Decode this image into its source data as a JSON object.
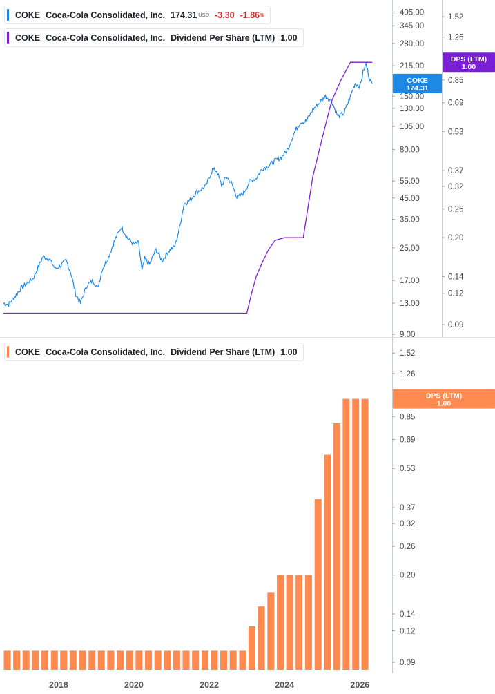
{
  "panels": {
    "top_legend_price": {
      "ticker": "COKE",
      "name": "Coca-Cola Consolidated, Inc.",
      "price": "174.31",
      "currency": "USD",
      "change": "-3.30",
      "change_pct": "-1.86",
      "pct_sign": "%"
    },
    "top_legend_dps": {
      "ticker": "COKE",
      "name": "Coca-Cola Consolidated, Inc.",
      "metric": "Dividend Per Share (LTM)",
      "value": "1.00"
    },
    "bottom_legend_dps": {
      "ticker": "COKE",
      "name": "Coca-Cola Consolidated, Inc.",
      "metric": "Dividend Per Share (LTM)",
      "value": "1.00"
    }
  },
  "colors": {
    "price_line": "#1e88e5",
    "dps_line": "#7b1fd6",
    "dps_bar": "#ff8a50",
    "axis_text": "#444444",
    "neg": "#d32f2f"
  },
  "chart_data": [
    {
      "type": "line",
      "title": "",
      "scale": "log",
      "price_axis_ticks": [
        "405.00",
        "345.00",
        "280.00",
        "215.00",
        "150.00",
        "130.00",
        "105.00",
        "80.00",
        "55.00",
        "45.00",
        "35.00",
        "25.00",
        "17.00",
        "13.00",
        "9.00"
      ],
      "dps_axis_ticks": [
        "1.52",
        "1.26",
        "0.85",
        "0.69",
        "0.53",
        "0.37",
        "0.32",
        "0.26",
        "0.20",
        "0.14",
        "0.12",
        "0.09"
      ],
      "price_ylim": [
        9,
        460
      ],
      "dps_ylim": [
        0.084,
        1.76
      ],
      "xlim": [
        "2016-07-15",
        "2026-08-01"
      ],
      "labels": {
        "price": {
          "name": "COKE",
          "value": "174.31"
        },
        "dps": {
          "name": "DPS (LTM)",
          "value": "1.00"
        }
      },
      "series": [
        {
          "name": "COKE",
          "x": [
            "2016-07-15",
            "2016-09-01",
            "2016-11-01",
            "2017-01-01",
            "2017-03-01",
            "2017-05-01",
            "2017-06-15",
            "2017-08-01",
            "2017-10-01",
            "2017-12-01",
            "2018-02-01",
            "2018-03-15",
            "2018-05-01",
            "2018-06-15",
            "2018-08-01",
            "2018-10-01",
            "2018-12-01",
            "2019-01-15",
            "2019-03-01",
            "2019-05-01",
            "2019-07-01",
            "2019-09-01",
            "2019-11-01",
            "2020-01-01",
            "2020-02-15",
            "2020-03-20",
            "2020-04-15",
            "2020-06-01",
            "2020-08-01",
            "2020-10-01",
            "2020-12-01",
            "2021-02-01",
            "2021-03-15",
            "2021-05-01",
            "2021-07-01",
            "2021-09-01",
            "2021-10-15",
            "2021-12-01",
            "2022-02-01",
            "2022-03-15",
            "2022-05-01",
            "2022-06-15",
            "2022-08-01",
            "2022-10-01",
            "2022-12-01",
            "2023-02-01",
            "2023-04-01",
            "2023-06-01",
            "2023-08-01",
            "2023-10-01",
            "2023-12-01",
            "2024-02-01",
            "2024-04-01",
            "2024-06-01",
            "2024-08-01",
            "2024-10-01",
            "2024-12-01",
            "2025-02-01",
            "2025-04-01",
            "2025-06-01",
            "2025-08-01",
            "2025-10-01",
            "2025-11-15",
            "2026-01-01",
            "2026-02-01",
            "2026-03-01",
            "2026-04-01",
            "2026-05-01"
          ],
          "values": [
            13.0,
            12.8,
            14.0,
            15.5,
            16.5,
            17.5,
            19.8,
            22.5,
            22.0,
            19.5,
            20.5,
            21.5,
            18.5,
            14.5,
            13.0,
            16.0,
            17.0,
            15.5,
            19.5,
            22.5,
            27.5,
            32.0,
            28.0,
            26.0,
            26.5,
            19.0,
            22.0,
            20.5,
            24.5,
            21.5,
            24.0,
            25.5,
            31.0,
            42.0,
            44.0,
            48.5,
            50.0,
            52.0,
            63.0,
            62.0,
            52.0,
            58.0,
            54.0,
            45.0,
            48.0,
            55.0,
            57.0,
            64.0,
            66.0,
            70.0,
            73.0,
            80.0,
            97.0,
            110.0,
            112.0,
            128.0,
            138.0,
            150.0,
            142.0,
            118.0,
            123.0,
            150.0,
            175.0,
            168.0,
            200.0,
            220.0,
            188.0,
            174.31
          ]
        },
        {
          "name": "Dividend Per Share (LTM)",
          "x": [
            "2016-07-15",
            "2022-12-31",
            "2023-02-15",
            "2023-04-01",
            "2023-06-01",
            "2023-08-01",
            "2023-10-01",
            "2024-01-01",
            "2024-04-01",
            "2024-07-01",
            "2024-10-01",
            "2025-01-01",
            "2025-04-01",
            "2025-07-01",
            "2025-10-01",
            "2026-01-01",
            "2026-05-01"
          ],
          "values": [
            0.1,
            0.1,
            0.12,
            0.14,
            0.16,
            0.18,
            0.195,
            0.2,
            0.2,
            0.2,
            0.35,
            0.5,
            0.7,
            0.85,
            1.0,
            1.0,
            1.0
          ]
        }
      ]
    },
    {
      "type": "bar",
      "title": "",
      "scale": "log",
      "axis_ticks": [
        "1.52",
        "1.26",
        "0.85",
        "0.69",
        "0.53",
        "0.37",
        "0.32",
        "0.26",
        "0.20",
        "0.14",
        "0.12",
        "0.09"
      ],
      "x_tick_labels": [
        "2018",
        "2020",
        "2022",
        "2024",
        "2026"
      ],
      "ylim": [
        0.084,
        1.76
      ],
      "label": {
        "name": "DPS (LTM)",
        "value": "1.00"
      },
      "series": [
        {
          "name": "Dividend Per Share (LTM)",
          "x": [
            "2016-09-30",
            "2016-12-31",
            "2017-03-31",
            "2017-06-30",
            "2017-09-30",
            "2017-12-31",
            "2018-03-31",
            "2018-06-30",
            "2018-09-30",
            "2018-12-31",
            "2019-03-31",
            "2019-06-30",
            "2019-09-30",
            "2019-12-31",
            "2020-03-31",
            "2020-06-30",
            "2020-09-30",
            "2020-12-31",
            "2021-03-31",
            "2021-06-30",
            "2021-09-30",
            "2021-12-31",
            "2022-03-31",
            "2022-06-30",
            "2022-09-30",
            "2022-12-31",
            "2023-03-31",
            "2023-06-30",
            "2023-09-30",
            "2023-12-31",
            "2024-03-31",
            "2024-06-30",
            "2024-09-30",
            "2024-12-31",
            "2025-03-31",
            "2025-06-30",
            "2025-09-30",
            "2025-12-31",
            "2026-03-31"
          ],
          "values": [
            0.1,
            0.1,
            0.1,
            0.1,
            0.1,
            0.1,
            0.1,
            0.1,
            0.1,
            0.1,
            0.1,
            0.1,
            0.1,
            0.1,
            0.1,
            0.1,
            0.1,
            0.1,
            0.1,
            0.1,
            0.1,
            0.1,
            0.1,
            0.1,
            0.1,
            0.1,
            0.125,
            0.15,
            0.17,
            0.2,
            0.2,
            0.2,
            0.2,
            0.4,
            0.6,
            0.8,
            1.0,
            1.0,
            1.0
          ]
        }
      ]
    }
  ]
}
